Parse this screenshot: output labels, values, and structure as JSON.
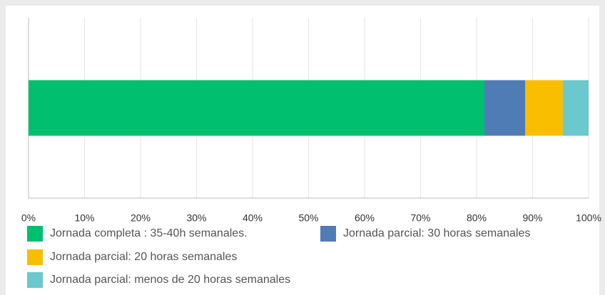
{
  "chart_data": {
    "type": "stacked_barh",
    "categories": [
      null
    ],
    "series": [
      {
        "name": "Jornada completa : 35-40h semanales.",
        "color": "#00bf6f",
        "values": [
          81.4
        ]
      },
      {
        "name": "Jornada parcial: 30 horas semanales",
        "color": "#507cb6",
        "values": [
          7.3
        ]
      },
      {
        "name": "Jornada parcial: 20 horas semanales",
        "color": "#f9be00",
        "values": [
          6.7
        ]
      },
      {
        "name": "Jornada parcial: menos de 20 horas semanales",
        "color": "#6bc8cd",
        "values": [
          4.6
        ]
      }
    ],
    "xlim": [
      0,
      100
    ],
    "xticks": [
      {
        "value": 0,
        "label": "0%"
      },
      {
        "value": 10,
        "label": "10%"
      },
      {
        "value": 20,
        "label": "20%"
      },
      {
        "value": 30,
        "label": "30%"
      },
      {
        "value": 40,
        "label": "40%"
      },
      {
        "value": 50,
        "label": "50%"
      },
      {
        "value": 60,
        "label": "60%"
      },
      {
        "value": 70,
        "label": "70%"
      },
      {
        "value": 80,
        "label": "80%"
      },
      {
        "value": 90,
        "label": "90%"
      },
      {
        "value": 100,
        "label": "100%"
      }
    ],
    "grid": true
  }
}
